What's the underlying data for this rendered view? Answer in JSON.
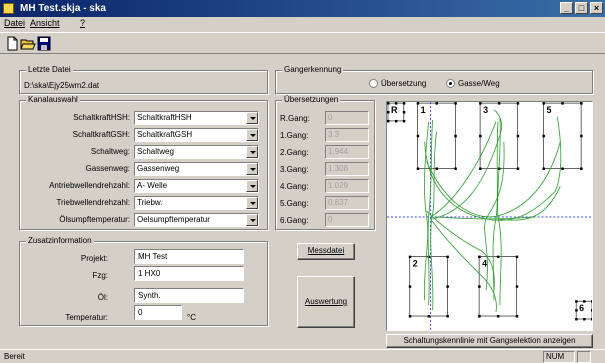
{
  "window": {
    "title": "MH Test.skja - ska"
  },
  "titlebar_buttons": {
    "minimize": "_",
    "maximize": "□",
    "close": "×"
  },
  "menu": {
    "datei": "Datei",
    "ansicht": "Ansicht",
    "help": "?"
  },
  "toolbar": {
    "icons": [
      "new-file-icon",
      "open-folder-icon",
      "save-disk-icon"
    ]
  },
  "letzte_datei": {
    "title": "Letzte Datei",
    "path": "D:\\ska\\Ejy25wm2.dat"
  },
  "kanalauswahl": {
    "title": "Kanalauswahl",
    "rows": [
      {
        "label": "SchaltkraftHSH:",
        "value": "SchaltkraftHSH"
      },
      {
        "label": "SchaltkraftGSH:",
        "value": "SchaltkraftGSH"
      },
      {
        "label": "Schaltweg:",
        "value": "Schaltweg"
      },
      {
        "label": "Gassenweg:",
        "value": "Gassenweg"
      },
      {
        "label": "Antriebwellendrehzahl:",
        "value": "A- Welle"
      },
      {
        "label": "Triebwellendrehzahl:",
        "value": "Triebw."
      },
      {
        "label": "Ölsumpftemperatur:",
        "value": "Oelsumpftemperatur"
      }
    ]
  },
  "zusatzinformation": {
    "title": "Zusatzinformation",
    "projekt_label": "Projekt:",
    "projekt": "MH Test",
    "fzg_label": "Fzg:",
    "fzg": "1 HX0",
    "oel_label": "Öl:",
    "oel": "Synth.",
    "temperatur_label": "Temperatur:",
    "temperatur": "0",
    "unit": "°C"
  },
  "gangerkennung": {
    "title": "Gangerkennung",
    "opt_uebersetzung": "Übersetzung",
    "opt_gasse": "Gasse/Weg",
    "selected": "gasse"
  },
  "uebersetzungen": {
    "title": "Übersetzungen",
    "rows": [
      {
        "label": "R.Gang:",
        "value": "0"
      },
      {
        "label": "1.Gang:",
        "value": "3.3"
      },
      {
        "label": "2.Gang:",
        "value": "1.944"
      },
      {
        "label": "3.Gang:",
        "value": "1.308"
      },
      {
        "label": "4.Gang:",
        "value": "1.029"
      },
      {
        "label": "5.Gang:",
        "value": "0.837"
      },
      {
        "label": "6.Gang:",
        "value": "0"
      }
    ]
  },
  "buttons": {
    "messdatei": "Messdatei",
    "auswertung": "Auswertung",
    "anzeigen": "Schaltungskennlinie mit Gangselektion anzeigen"
  },
  "plot": {
    "gear_labels": [
      "R",
      "1",
      "3",
      "5",
      "2",
      "4",
      "6"
    ],
    "trace_color": "#2a9a2a",
    "crosshair_color": "#4040ff"
  },
  "statusbar": {
    "text": "Bereit",
    "num": "NUM"
  }
}
